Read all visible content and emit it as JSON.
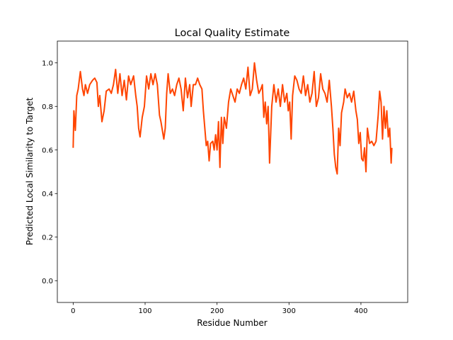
{
  "chart_data": {
    "type": "line",
    "title": "Local Quality Estimate",
    "x_label": "Residue Number",
    "y_label": "Predicted Local Similarity to Target",
    "color": "#ff4500",
    "x": [
      0,
      1,
      3,
      5,
      7,
      10,
      13,
      15,
      17,
      20,
      23,
      27,
      30,
      33,
      35,
      37,
      40,
      43,
      46,
      50,
      53,
      56,
      59,
      62,
      65,
      68,
      71,
      74,
      77,
      80,
      84,
      87,
      89,
      91,
      93,
      96,
      99,
      102,
      105,
      108,
      111,
      114,
      117,
      120,
      122,
      126,
      128,
      130,
      132,
      135,
      138,
      141,
      144,
      147,
      150,
      153,
      156,
      159,
      162,
      164,
      167,
      170,
      173,
      176,
      179,
      181,
      183,
      185,
      187,
      189,
      191,
      194,
      196,
      198,
      200,
      202,
      204,
      206,
      208,
      210,
      213,
      216,
      219,
      222,
      225,
      228,
      231,
      234,
      237,
      240,
      243,
      246,
      249,
      252,
      255,
      258,
      261,
      263,
      265,
      267,
      269,
      271,
      273,
      276,
      279,
      282,
      285,
      288,
      291,
      294,
      297,
      299,
      301,
      303,
      305,
      308,
      311,
      314,
      317,
      320,
      323,
      326,
      329,
      332,
      335,
      338,
      341,
      344,
      347,
      350,
      353,
      356,
      359,
      361,
      363,
      365,
      367,
      369,
      371,
      373,
      376,
      378,
      381,
      384,
      387,
      390,
      393,
      395,
      397,
      399,
      401,
      403,
      405,
      407,
      409,
      412,
      415,
      418,
      421,
      424,
      426,
      428,
      430,
      432,
      434,
      436,
      438,
      440,
      442,
      443
    ],
    "values": [
      0.61,
      0.78,
      0.69,
      0.85,
      0.88,
      0.96,
      0.88,
      0.85,
      0.9,
      0.86,
      0.9,
      0.92,
      0.93,
      0.91,
      0.8,
      0.85,
      0.73,
      0.78,
      0.87,
      0.88,
      0.86,
      0.9,
      0.97,
      0.86,
      0.95,
      0.85,
      0.92,
      0.83,
      0.94,
      0.9,
      0.94,
      0.85,
      0.8,
      0.7,
      0.66,
      0.75,
      0.8,
      0.94,
      0.88,
      0.95,
      0.9,
      0.95,
      0.9,
      0.76,
      0.73,
      0.65,
      0.7,
      0.86,
      0.95,
      0.86,
      0.88,
      0.85,
      0.9,
      0.93,
      0.88,
      0.78,
      0.93,
      0.84,
      0.9,
      0.8,
      0.9,
      0.9,
      0.93,
      0.9,
      0.88,
      0.78,
      0.7,
      0.62,
      0.64,
      0.55,
      0.63,
      0.64,
      0.6,
      0.67,
      0.6,
      0.73,
      0.52,
      0.75,
      0.63,
      0.75,
      0.7,
      0.82,
      0.88,
      0.85,
      0.82,
      0.88,
      0.86,
      0.9,
      0.93,
      0.88,
      0.98,
      0.85,
      0.88,
      1.0,
      0.92,
      0.86,
      0.88,
      0.9,
      0.75,
      0.82,
      0.72,
      0.8,
      0.54,
      0.8,
      0.9,
      0.82,
      0.88,
      0.8,
      0.9,
      0.82,
      0.86,
      0.78,
      0.82,
      0.65,
      0.85,
      0.94,
      0.92,
      0.88,
      0.86,
      0.94,
      0.85,
      0.9,
      0.82,
      0.86,
      0.96,
      0.8,
      0.84,
      0.95,
      0.88,
      0.86,
      0.82,
      0.92,
      0.8,
      0.7,
      0.58,
      0.52,
      0.49,
      0.7,
      0.62,
      0.77,
      0.82,
      0.88,
      0.84,
      0.86,
      0.82,
      0.87,
      0.78,
      0.74,
      0.63,
      0.68,
      0.56,
      0.55,
      0.61,
      0.5,
      0.7,
      0.63,
      0.64,
      0.62,
      0.64,
      0.76,
      0.87,
      0.82,
      0.65,
      0.8,
      0.7,
      0.78,
      0.66,
      0.7,
      0.54,
      0.61
    ],
    "xlim": [
      -22,
      465
    ],
    "xticks": [
      0,
      100,
      200,
      300,
      400
    ],
    "ylim": [
      -0.1,
      1.1
    ],
    "yticks": [
      {
        "value": 0,
        "label": "0.0"
      },
      0.2,
      0.4,
      0.6,
      0.8,
      {
        "value": 1,
        "label": "1.0"
      }
    ]
  }
}
